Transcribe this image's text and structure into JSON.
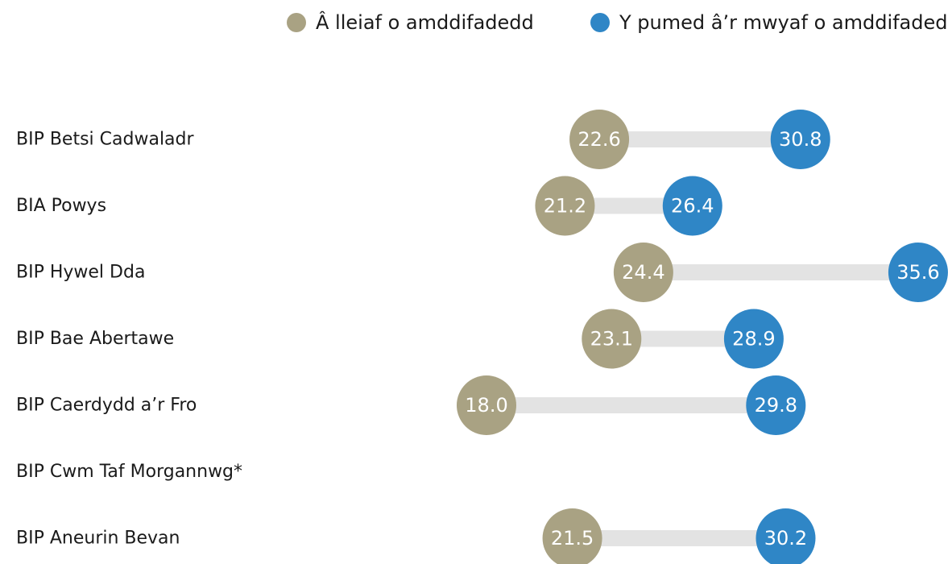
{
  "chart_data": {
    "type": "dumbbell",
    "legend": {
      "position": "top",
      "entries": [
        {
          "name": "Â lleiaf o amddifadedd",
          "color": "#a9a283"
        },
        {
          "name": "Y pumed â’r mwyaf o amddifadedd",
          "color": "#2f86c6"
        }
      ]
    },
    "connector_color": "#e3e3e3",
    "categories": [
      "BIP Betsi Cadwaladr",
      "BIA Powys",
      "BIP Hywel Dda",
      "BIP Bae Abertawe",
      "BIP Caerdydd a’r Fro",
      "BIP Cwm Taf Morgannwg*",
      "BIP Aneurin Bevan"
    ],
    "series": [
      {
        "name": "Â lleiaf o amddifadedd",
        "values": [
          22.6,
          21.2,
          24.4,
          23.1,
          18.0,
          null,
          21.5
        ]
      },
      {
        "name": "Y pumed â’r mwyaf o amddifadedd",
        "values": [
          30.8,
          26.4,
          35.6,
          28.9,
          29.8,
          null,
          30.2
        ]
      }
    ],
    "value_labels": [
      [
        "22.6",
        "21.2",
        "24.4",
        "23.1",
        "18.0",
        "",
        "21.5"
      ],
      [
        "30.8",
        "26.4",
        "35.6",
        "28.9",
        "29.8",
        "",
        "30.2"
      ]
    ]
  }
}
